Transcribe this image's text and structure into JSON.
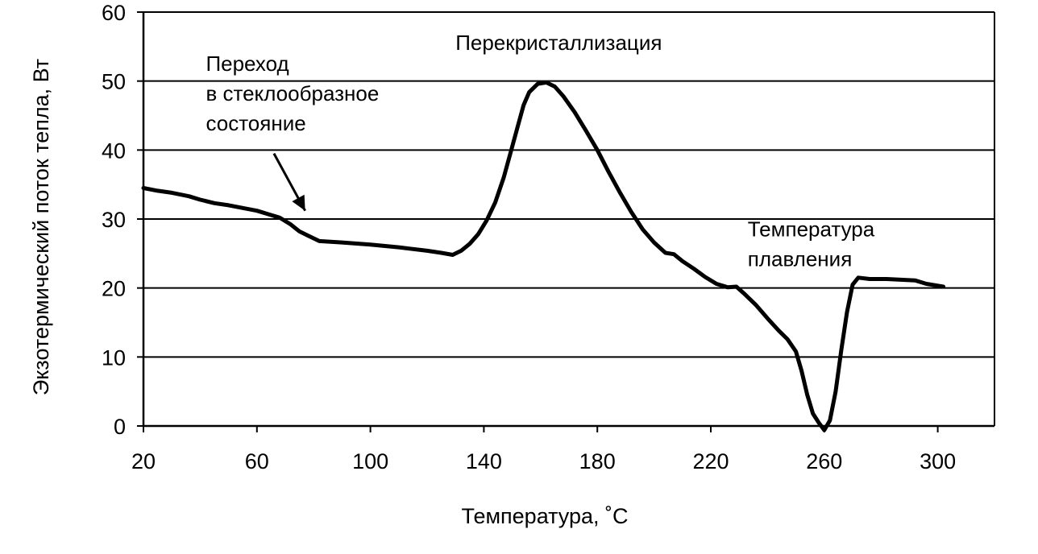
{
  "chart_data": {
    "type": "line",
    "title": "",
    "xlabel": "Температура, ˚С",
    "ylabel": "Экзотермический поток тепла, Вт",
    "xlim": [
      20,
      320
    ],
    "ylim": [
      0,
      60
    ],
    "x_ticks": [
      20,
      60,
      100,
      140,
      180,
      220,
      260,
      300
    ],
    "y_ticks": [
      0,
      10,
      20,
      30,
      40,
      50,
      60
    ],
    "grid": "horizontal",
    "legend": "none",
    "series": [
      {
        "color": "#000000",
        "points": [
          [
            20,
            34.5
          ],
          [
            25,
            34.1
          ],
          [
            30,
            33.8
          ],
          [
            36,
            33.3
          ],
          [
            40,
            32.8
          ],
          [
            45,
            32.3
          ],
          [
            50,
            32.0
          ],
          [
            55,
            31.6
          ],
          [
            60,
            31.2
          ],
          [
            64,
            30.7
          ],
          [
            68,
            30.2
          ],
          [
            72,
            29.2
          ],
          [
            75,
            28.2
          ],
          [
            78,
            27.6
          ],
          [
            82,
            26.8
          ],
          [
            90,
            26.6
          ],
          [
            100,
            26.3
          ],
          [
            110,
            25.9
          ],
          [
            120,
            25.4
          ],
          [
            125,
            25.1
          ],
          [
            129,
            24.8
          ],
          [
            132,
            25.4
          ],
          [
            135,
            26.4
          ],
          [
            138,
            27.8
          ],
          [
            141,
            29.8
          ],
          [
            144,
            32.4
          ],
          [
            147,
            36.0
          ],
          [
            150,
            40.5
          ],
          [
            152,
            43.5
          ],
          [
            154,
            46.5
          ],
          [
            156,
            48.4
          ],
          [
            159,
            49.6
          ],
          [
            162,
            49.8
          ],
          [
            165,
            49.2
          ],
          [
            168,
            47.8
          ],
          [
            172,
            45.5
          ],
          [
            176,
            42.8
          ],
          [
            180,
            40.0
          ],
          [
            184,
            36.8
          ],
          [
            188,
            33.8
          ],
          [
            192,
            31.0
          ],
          [
            196,
            28.5
          ],
          [
            200,
            26.6
          ],
          [
            204,
            25.1
          ],
          [
            207,
            24.9
          ],
          [
            210,
            23.9
          ],
          [
            214,
            22.8
          ],
          [
            218,
            21.6
          ],
          [
            222,
            20.6
          ],
          [
            226,
            20.1
          ],
          [
            229,
            20.2
          ],
          [
            232,
            19.1
          ],
          [
            236,
            17.5
          ],
          [
            240,
            15.6
          ],
          [
            244,
            13.8
          ],
          [
            247,
            12.6
          ],
          [
            250,
            10.8
          ],
          [
            252,
            8.0
          ],
          [
            254,
            4.5
          ],
          [
            256,
            1.8
          ],
          [
            258,
            0.5
          ],
          [
            260,
            -0.6
          ],
          [
            262,
            0.8
          ],
          [
            264,
            5.0
          ],
          [
            266,
            11.0
          ],
          [
            268,
            16.5
          ],
          [
            270,
            20.5
          ],
          [
            272,
            21.5
          ],
          [
            276,
            21.3
          ],
          [
            282,
            21.3
          ],
          [
            292,
            21.1
          ],
          [
            296,
            20.6
          ],
          [
            302,
            20.2
          ]
        ]
      }
    ],
    "annotations": [
      {
        "lines": [
          "Переход",
          "в стеклообразное",
          "состояние"
        ],
        "x": 42,
        "y": 51.5
      },
      {
        "lines": [
          "Перекристаллизация"
        ],
        "x": 130,
        "y": 54.5
      },
      {
        "lines": [
          "Температура",
          "плавления"
        ],
        "x": 233,
        "y": 27.5
      }
    ],
    "arrow": {
      "from": [
        66,
        39.5
      ],
      "to": [
        77,
        31.2
      ]
    }
  }
}
